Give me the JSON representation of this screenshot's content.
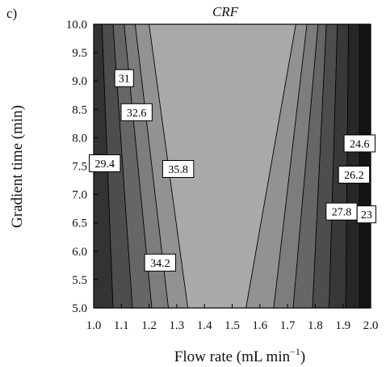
{
  "panel_label": "c)",
  "chart_data": {
    "type": "contour",
    "title": "CRF",
    "xlabel": "Flow rate (mL min",
    "xlabel_sup": "−1",
    "xlabel_tail": ")",
    "ylabel": "Gradient time (min)",
    "xlim": [
      1.0,
      2.0
    ],
    "ylim": [
      5.0,
      10.0
    ],
    "x_ticks": [
      "1.0",
      "1.1",
      "1.2",
      "1.3",
      "1.4",
      "1.5",
      "1.6",
      "1.7",
      "1.8",
      "1.9",
      "2.0"
    ],
    "y_ticks": [
      "5.0",
      "5.5",
      "6.0",
      "6.5",
      "7.0",
      "7.5",
      "8.0",
      "8.5",
      "9.0",
      "9.5",
      "10.0"
    ],
    "bands": [
      {
        "color": "#333333",
        "top": [
          1.0,
          1.03
        ],
        "bottom": [
          1.0,
          1.07
        ]
      },
      {
        "color": "#4d4d4d",
        "top": [
          1.03,
          1.07
        ],
        "bottom": [
          1.07,
          1.14
        ]
      },
      {
        "color": "#666666",
        "top": [
          1.07,
          1.11
        ],
        "bottom": [
          1.14,
          1.21
        ]
      },
      {
        "color": "#7d7d7d",
        "top": [
          1.11,
          1.15
        ],
        "bottom": [
          1.21,
          1.27
        ]
      },
      {
        "color": "#929292",
        "top": [
          1.15,
          1.2
        ],
        "bottom": [
          1.27,
          1.34
        ]
      },
      {
        "color": "#a9a9a9",
        "top": [
          1.2,
          1.73
        ],
        "bottom": [
          1.34,
          1.55
        ]
      },
      {
        "color": "#929292",
        "top": [
          1.73,
          1.77
        ],
        "bottom": [
          1.55,
          1.65
        ]
      },
      {
        "color": "#7d7d7d",
        "top": [
          1.77,
          1.81
        ],
        "bottom": [
          1.65,
          1.72
        ]
      },
      {
        "color": "#666666",
        "top": [
          1.81,
          1.84
        ],
        "bottom": [
          1.72,
          1.79
        ]
      },
      {
        "color": "#4d4d4d",
        "top": [
          1.84,
          1.88
        ],
        "bottom": [
          1.79,
          1.85
        ]
      },
      {
        "color": "#383838",
        "top": [
          1.88,
          1.92
        ],
        "bottom": [
          1.85,
          1.91
        ]
      },
      {
        "color": "#262626",
        "top": [
          1.92,
          1.96
        ],
        "bottom": [
          1.91,
          1.96
        ]
      },
      {
        "color": "#141414",
        "top": [
          1.96,
          2.0
        ],
        "bottom": [
          1.96,
          2.0
        ]
      }
    ],
    "contour_labels": [
      {
        "text": "31",
        "x": 1.11,
        "y": 9.05
      },
      {
        "text": "32.6",
        "x": 1.155,
        "y": 8.45
      },
      {
        "text": "29.4",
        "x": 1.04,
        "y": 7.55
      },
      {
        "text": "35.8",
        "x": 1.305,
        "y": 7.45
      },
      {
        "text": "34.2",
        "x": 1.24,
        "y": 5.8
      },
      {
        "text": "24.6",
        "x": 1.96,
        "y": 7.9
      },
      {
        "text": "26.2",
        "x": 1.94,
        "y": 7.35
      },
      {
        "text": "27.8",
        "x": 1.895,
        "y": 6.7
      },
      {
        "text": "23",
        "x": 1.985,
        "y": 6.65
      }
    ],
    "grid": false
  }
}
